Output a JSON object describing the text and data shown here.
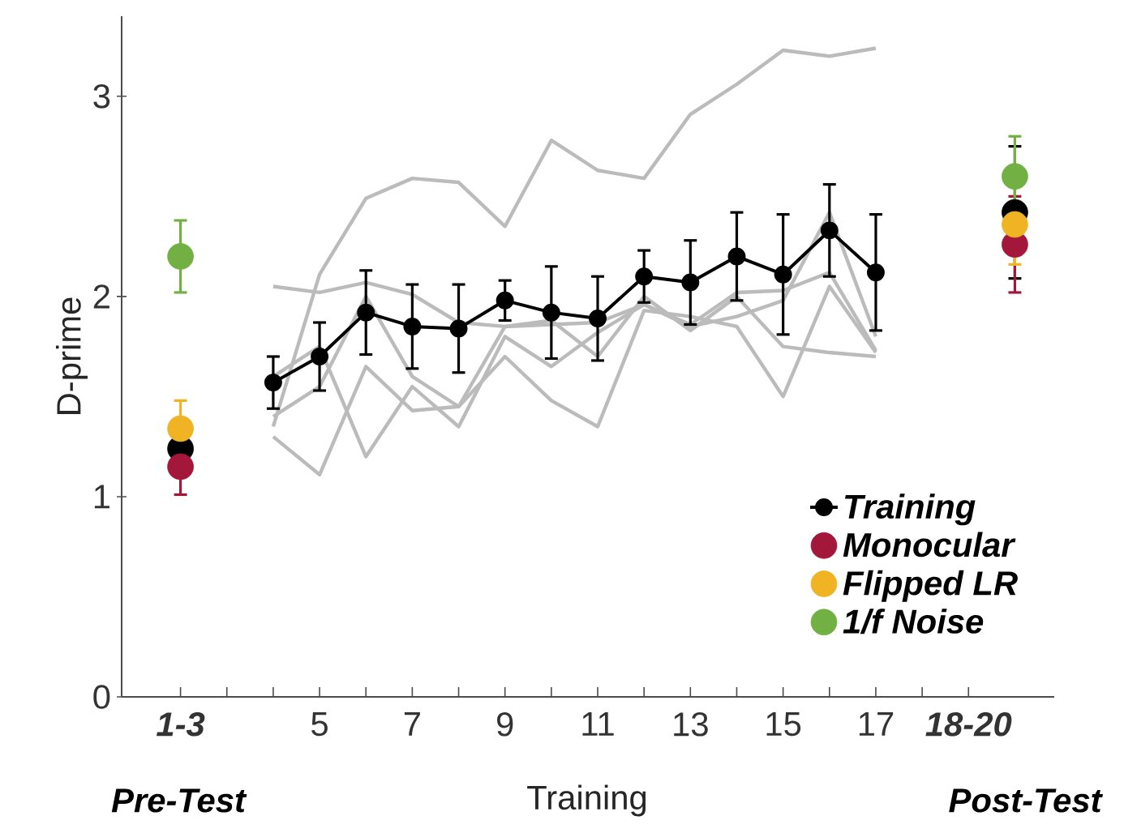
{
  "chart_data": {
    "type": "line",
    "xlabel": "Training",
    "ylabel": "D-prime",
    "annotations": [
      "Pre-Test",
      "Post-Test"
    ],
    "xlim": [
      0.73,
      20.85
    ],
    "ylim": [
      0,
      3.4
    ],
    "xticks": [
      {
        "value": 2,
        "label": "1-3"
      },
      {
        "value": 3,
        "label": null
      },
      {
        "value": 4,
        "label": null
      },
      5,
      {
        "value": 6,
        "label": null
      },
      7,
      {
        "value": 8,
        "label": null
      },
      9,
      {
        "value": 10,
        "label": null
      },
      11,
      {
        "value": 12,
        "label": null
      },
      13,
      {
        "value": 14,
        "label": null
      },
      15,
      {
        "value": 16,
        "label": null
      },
      17,
      {
        "value": 18,
        "label": null
      },
      {
        "value": 19,
        "label": "18-20"
      }
    ],
    "yticks": [
      0,
      1,
      2,
      3
    ],
    "legend": "bottom right",
    "grid": false,
    "series": [
      {
        "color": "#bbbbbb",
        "marker": "none",
        "x": [
          4,
          5,
          6,
          7,
          8,
          9,
          10,
          11,
          12,
          13,
          14,
          15,
          16,
          17
        ],
        "values": [
          1.35,
          2.11,
          2.49,
          2.59,
          2.57,
          2.35,
          2.78,
          2.63,
          2.59,
          2.91,
          3.06,
          3.23,
          3.2,
          3.24
        ]
      },
      {
        "color": "#bbbbbb",
        "marker": "none",
        "x": [
          4,
          5,
          6,
          7,
          8,
          9,
          10,
          11,
          12,
          13,
          14,
          15,
          16,
          17
        ],
        "values": [
          2.05,
          2.02,
          2.07,
          2.01,
          1.87,
          1.85,
          1.86,
          1.87,
          1.96,
          1.86,
          2.02,
          2.03,
          2.12,
          1.73
        ]
      },
      {
        "color": "#bbbbbb",
        "marker": "none",
        "x": [
          4,
          5,
          6,
          7,
          8,
          9,
          10,
          11,
          12,
          13,
          14,
          15,
          16,
          17
        ],
        "values": [
          1.4,
          1.55,
          2.0,
          1.6,
          1.45,
          1.85,
          1.88,
          1.7,
          2.0,
          1.83,
          2.0,
          1.75,
          1.72,
          1.7
        ]
      },
      {
        "color": "#bbbbbb",
        "marker": "none",
        "x": [
          4,
          5,
          6,
          7,
          8,
          9,
          10,
          11,
          12,
          13,
          14,
          15,
          16,
          17
        ],
        "values": [
          1.3,
          1.11,
          1.65,
          1.43,
          1.45,
          1.7,
          1.48,
          1.35,
          1.93,
          1.9,
          1.85,
          1.5,
          2.05,
          1.72
        ]
      },
      {
        "color": "#bbbbbb",
        "marker": "none",
        "x": [
          4,
          5,
          6,
          7,
          8,
          9,
          10,
          11,
          12,
          13,
          14,
          15,
          16,
          17
        ],
        "values": [
          1.6,
          1.75,
          1.2,
          1.55,
          1.35,
          1.8,
          1.65,
          1.82,
          1.96,
          1.85,
          1.9,
          1.98,
          2.42,
          1.8
        ]
      },
      {
        "name": "Training",
        "color": "#000000",
        "marker": "circle",
        "x": [
          4,
          5,
          6,
          7,
          8,
          9,
          10,
          11,
          12,
          13,
          14,
          15,
          16,
          17
        ],
        "values": [
          1.57,
          1.7,
          1.92,
          1.85,
          1.84,
          1.98,
          1.92,
          1.89,
          2.1,
          2.07,
          2.2,
          2.11,
          2.33,
          2.12
        ],
        "errors": [
          0.13,
          0.17,
          0.21,
          0.21,
          0.22,
          0.1,
          0.23,
          0.21,
          0.13,
          0.21,
          0.22,
          0.3,
          0.23,
          0.29
        ]
      },
      {
        "type": "scatter",
        "color": "#000000",
        "marker": "circle",
        "x": [
          2,
          20
        ],
        "values": [
          1.24,
          2.42
        ],
        "errors": [
          null,
          0.33
        ]
      },
      {
        "name": "Monocular",
        "type": "scatter",
        "color": "#a3173a",
        "marker": "circle",
        "x": [
          2,
          20
        ],
        "values": [
          1.15,
          2.26
        ],
        "errors": [
          0.14,
          0.24
        ]
      },
      {
        "name": "Flipped LR",
        "type": "scatter",
        "color": "#f0b323",
        "marker": "circle",
        "x": [
          2,
          20
        ],
        "values": [
          1.34,
          2.36
        ],
        "errors": [
          0.14,
          0.2
        ]
      },
      {
        "name": "1/f Noise",
        "type": "scatter",
        "color": "#72b043",
        "marker": "circle",
        "x": [
          2,
          20
        ],
        "values": [
          2.2,
          2.6
        ],
        "errors": [
          0.18,
          0.2
        ]
      }
    ]
  }
}
